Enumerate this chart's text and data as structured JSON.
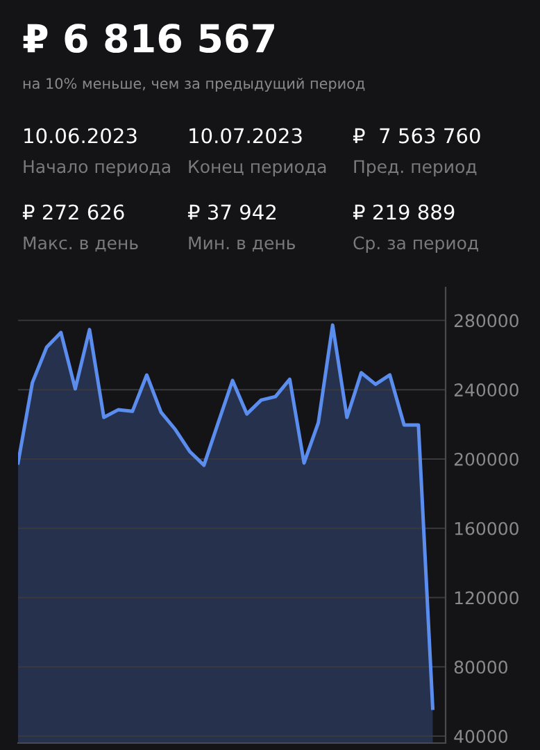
{
  "chart_data": {
    "type": "area",
    "title": "₽ 6 816 567",
    "subtitle": "на 10% меньше, чем за предыдущий период",
    "annotations": [
      "10.06.2023",
      "Начало периода",
      "10.07.2023",
      "Конец периода",
      "₽  7 563 760",
      "Пред. период",
      "₽ 272 626",
      "Макс. в день",
      "₽ 37 942",
      "Мин. в день",
      "₽ 219 889",
      "Ср. за период"
    ],
    "series": [
      {
        "color": "#5b8def",
        "values": [
          197700,
          244000,
          264500,
          273000,
          240500,
          274700,
          224000,
          228400,
          227500,
          248500,
          227000,
          217000,
          204400,
          196400,
          221000,
          245300,
          226000,
          234000,
          236000,
          246000,
          197700,
          221000,
          277300,
          224000,
          249800,
          243100,
          248500,
          219600,
          219600,
          56100
        ]
      }
    ],
    "categories": [
      null,
      null,
      null,
      null,
      null,
      null,
      null,
      null,
      null,
      null,
      null,
      null,
      null,
      null,
      null,
      null,
      null,
      null,
      null,
      null,
      null,
      null,
      null,
      null,
      null,
      null,
      null,
      null,
      null,
      null
    ],
    "ylim": [
      36000,
      299000
    ],
    "yticks": [
      40000,
      80000,
      120000,
      160000,
      200000,
      240000,
      280000
    ],
    "grid": "y",
    "tick_labels": "y"
  }
}
